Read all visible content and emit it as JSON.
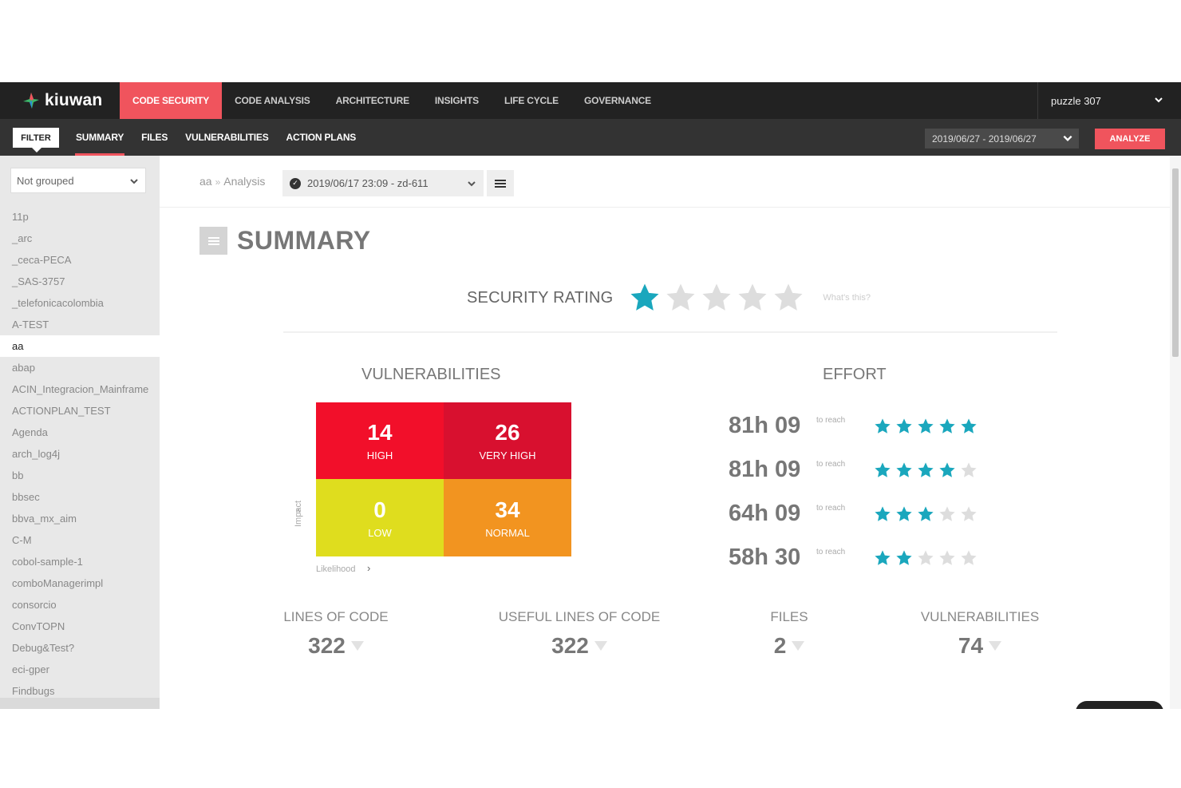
{
  "brand": {
    "name": "kiuwan"
  },
  "main_nav": {
    "tabs": [
      {
        "label": "CODE SECURITY",
        "active": true
      },
      {
        "label": "CODE ANALYSIS",
        "active": false
      },
      {
        "label": "ARCHITECTURE",
        "active": false
      },
      {
        "label": "INSIGHTS",
        "active": false
      },
      {
        "label": "LIFE CYCLE",
        "active": false
      },
      {
        "label": "GOVERNANCE",
        "active": false
      }
    ],
    "project": "puzzle 307"
  },
  "sub_nav": {
    "filter_label": "FILTER",
    "tabs": [
      {
        "label": "SUMMARY",
        "active": true
      },
      {
        "label": "FILES",
        "active": false
      },
      {
        "label": "VULNERABILITIES",
        "active": false
      },
      {
        "label": "ACTION PLANS",
        "active": false
      }
    ],
    "date_range": "2019/06/27 - 2019/06/27",
    "analyze_label": "ANALYZE"
  },
  "sidebar": {
    "grouping": "Not grouped",
    "apps": [
      "11p",
      "_arc",
      "_ceca-PECA",
      "_SAS-3757",
      "_telefonicacolombia",
      "A-TEST",
      "aa",
      "abap",
      "ACIN_Integracion_Mainframe",
      "ACTIONPLAN_TEST",
      "Agenda",
      "arch_log4j",
      "bb",
      "bbsec",
      "bbva_mx_aim",
      "C-M",
      "cobol-sample-1",
      "comboManagerimpl",
      "consorcio",
      "ConvTOPN",
      "Debug&Test?",
      "eci-gper",
      "Findbugs"
    ],
    "active_app": "aa"
  },
  "breadcrumb": {
    "app": "aa",
    "separator": "»",
    "section": "Analysis",
    "analysis": "2019/06/17 23:09 - zd-611"
  },
  "summary": {
    "title": "SUMMARY",
    "security_rating": {
      "label": "SECURITY RATING",
      "stars": 1,
      "max_stars": 5,
      "help": "What's this?"
    },
    "vulnerabilities_title": "VULNERABILITIES",
    "matrix": [
      {
        "value": "14",
        "label": "HIGH",
        "color": "#f20f2a"
      },
      {
        "value": "26",
        "label": "VERY HIGH",
        "color": "#d8102f"
      },
      {
        "value": "0",
        "label": "LOW",
        "color": "#dfdd1e"
      },
      {
        "value": "34",
        "label": "NORMAL",
        "color": "#f29420"
      }
    ],
    "impact_label": "Impact",
    "likelihood_label": "Likelihood",
    "effort_title": "EFFORT",
    "effort": [
      {
        "hours": "81h 09",
        "reach": "to reach",
        "stars": 5
      },
      {
        "hours": "81h 09",
        "reach": "to reach",
        "stars": 4
      },
      {
        "hours": "64h 09",
        "reach": "to reach",
        "stars": 3
      },
      {
        "hours": "58h 30",
        "reach": "to reach",
        "stars": 2
      }
    ],
    "metrics": [
      {
        "label": "LINES OF CODE",
        "value": "322"
      },
      {
        "label": "USEFUL LINES OF CODE",
        "value": "322"
      },
      {
        "label": "FILES",
        "value": "2"
      },
      {
        "label": "VULNERABILITIES",
        "value": "74"
      }
    ]
  },
  "colors": {
    "accent": "#f0545d",
    "star_on": "#1aa7bd",
    "star_off": "#dddddd"
  }
}
